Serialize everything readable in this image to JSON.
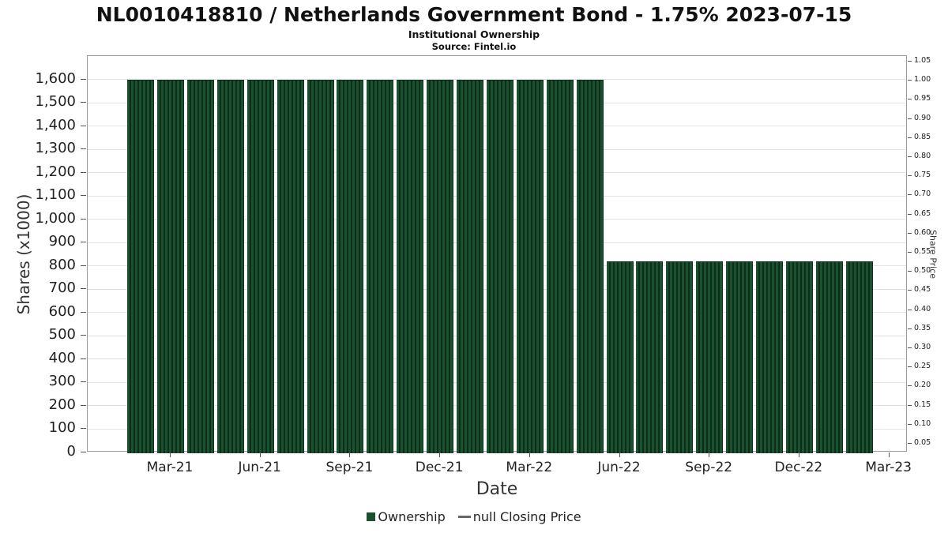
{
  "colors": {
    "bar": "#1c5130",
    "bar_stripe": "#0d2e1a",
    "legend_line": "#666666",
    "grid": "#e3e3e3",
    "axis": "#555555"
  },
  "chart_data": {
    "type": "bar",
    "title": "NL0010418810 / Netherlands Government Bond - 1.75% 2023-07-15",
    "subtitle": "Institutional Ownership",
    "source": "Source: Fintel.io",
    "xlabel": "Date",
    "ylabel_left": "Shares (x1000)",
    "ylabel_right": "Share Price",
    "x": [
      "Feb-21",
      "Mar-21",
      "Apr-21",
      "May-21",
      "Jun-21",
      "Jul-21",
      "Aug-21",
      "Sep-21",
      "Oct-21",
      "Nov-21",
      "Dec-21",
      "Jan-22",
      "Feb-22",
      "Mar-22",
      "Apr-22",
      "May-22",
      "Jun-22",
      "Jul-22",
      "Aug-22",
      "Sep-22",
      "Oct-22",
      "Nov-22",
      "Dec-22",
      "Jan-23",
      "Feb-23"
    ],
    "values": [
      1600,
      1600,
      1600,
      1600,
      1600,
      1600,
      1600,
      1600,
      1600,
      1600,
      1600,
      1600,
      1600,
      1600,
      1600,
      1600,
      820,
      820,
      820,
      820,
      820,
      820,
      820,
      820,
      820
    ],
    "x_tick_labels": [
      "Mar-21",
      "Jun-21",
      "Sep-21",
      "Dec-21",
      "Mar-22",
      "Jun-22",
      "Sep-22",
      "Dec-22",
      "Mar-23"
    ],
    "x_tick_month_index": [
      2,
      5,
      8,
      11,
      14,
      17,
      20,
      23,
      26
    ],
    "left_ticks": [
      0,
      100,
      200,
      300,
      400,
      500,
      600,
      700,
      800,
      900,
      1000,
      1100,
      1200,
      1300,
      1400,
      1500,
      1600
    ],
    "left_tick_labels": [
      "0",
      "100",
      "200",
      "300",
      "400",
      "500",
      "600",
      "700",
      "800",
      "900",
      "1,000",
      "1,100",
      "1,200",
      "1,300",
      "1,400",
      "1,500",
      "1,600"
    ],
    "ylim_left": [
      0,
      1700
    ],
    "right_tick_labels": [
      "1.05",
      "1.00",
      "0.95",
      "0.90",
      "0.85",
      "0.80",
      "0.75",
      "0.70",
      "0.65",
      "0.60",
      "0.55",
      "0.50",
      "0.45",
      "0.40",
      "0.35",
      "0.30",
      "0.25",
      "0.20",
      "0.15",
      "0.10",
      "0.05"
    ],
    "ylim_right": [
      0,
      1.05
    ],
    "grid": true,
    "legend_position": "bottom",
    "legend": [
      {
        "label": "Ownership",
        "marker": "square"
      },
      {
        "label": "null Closing Price",
        "marker": "line"
      }
    ]
  }
}
